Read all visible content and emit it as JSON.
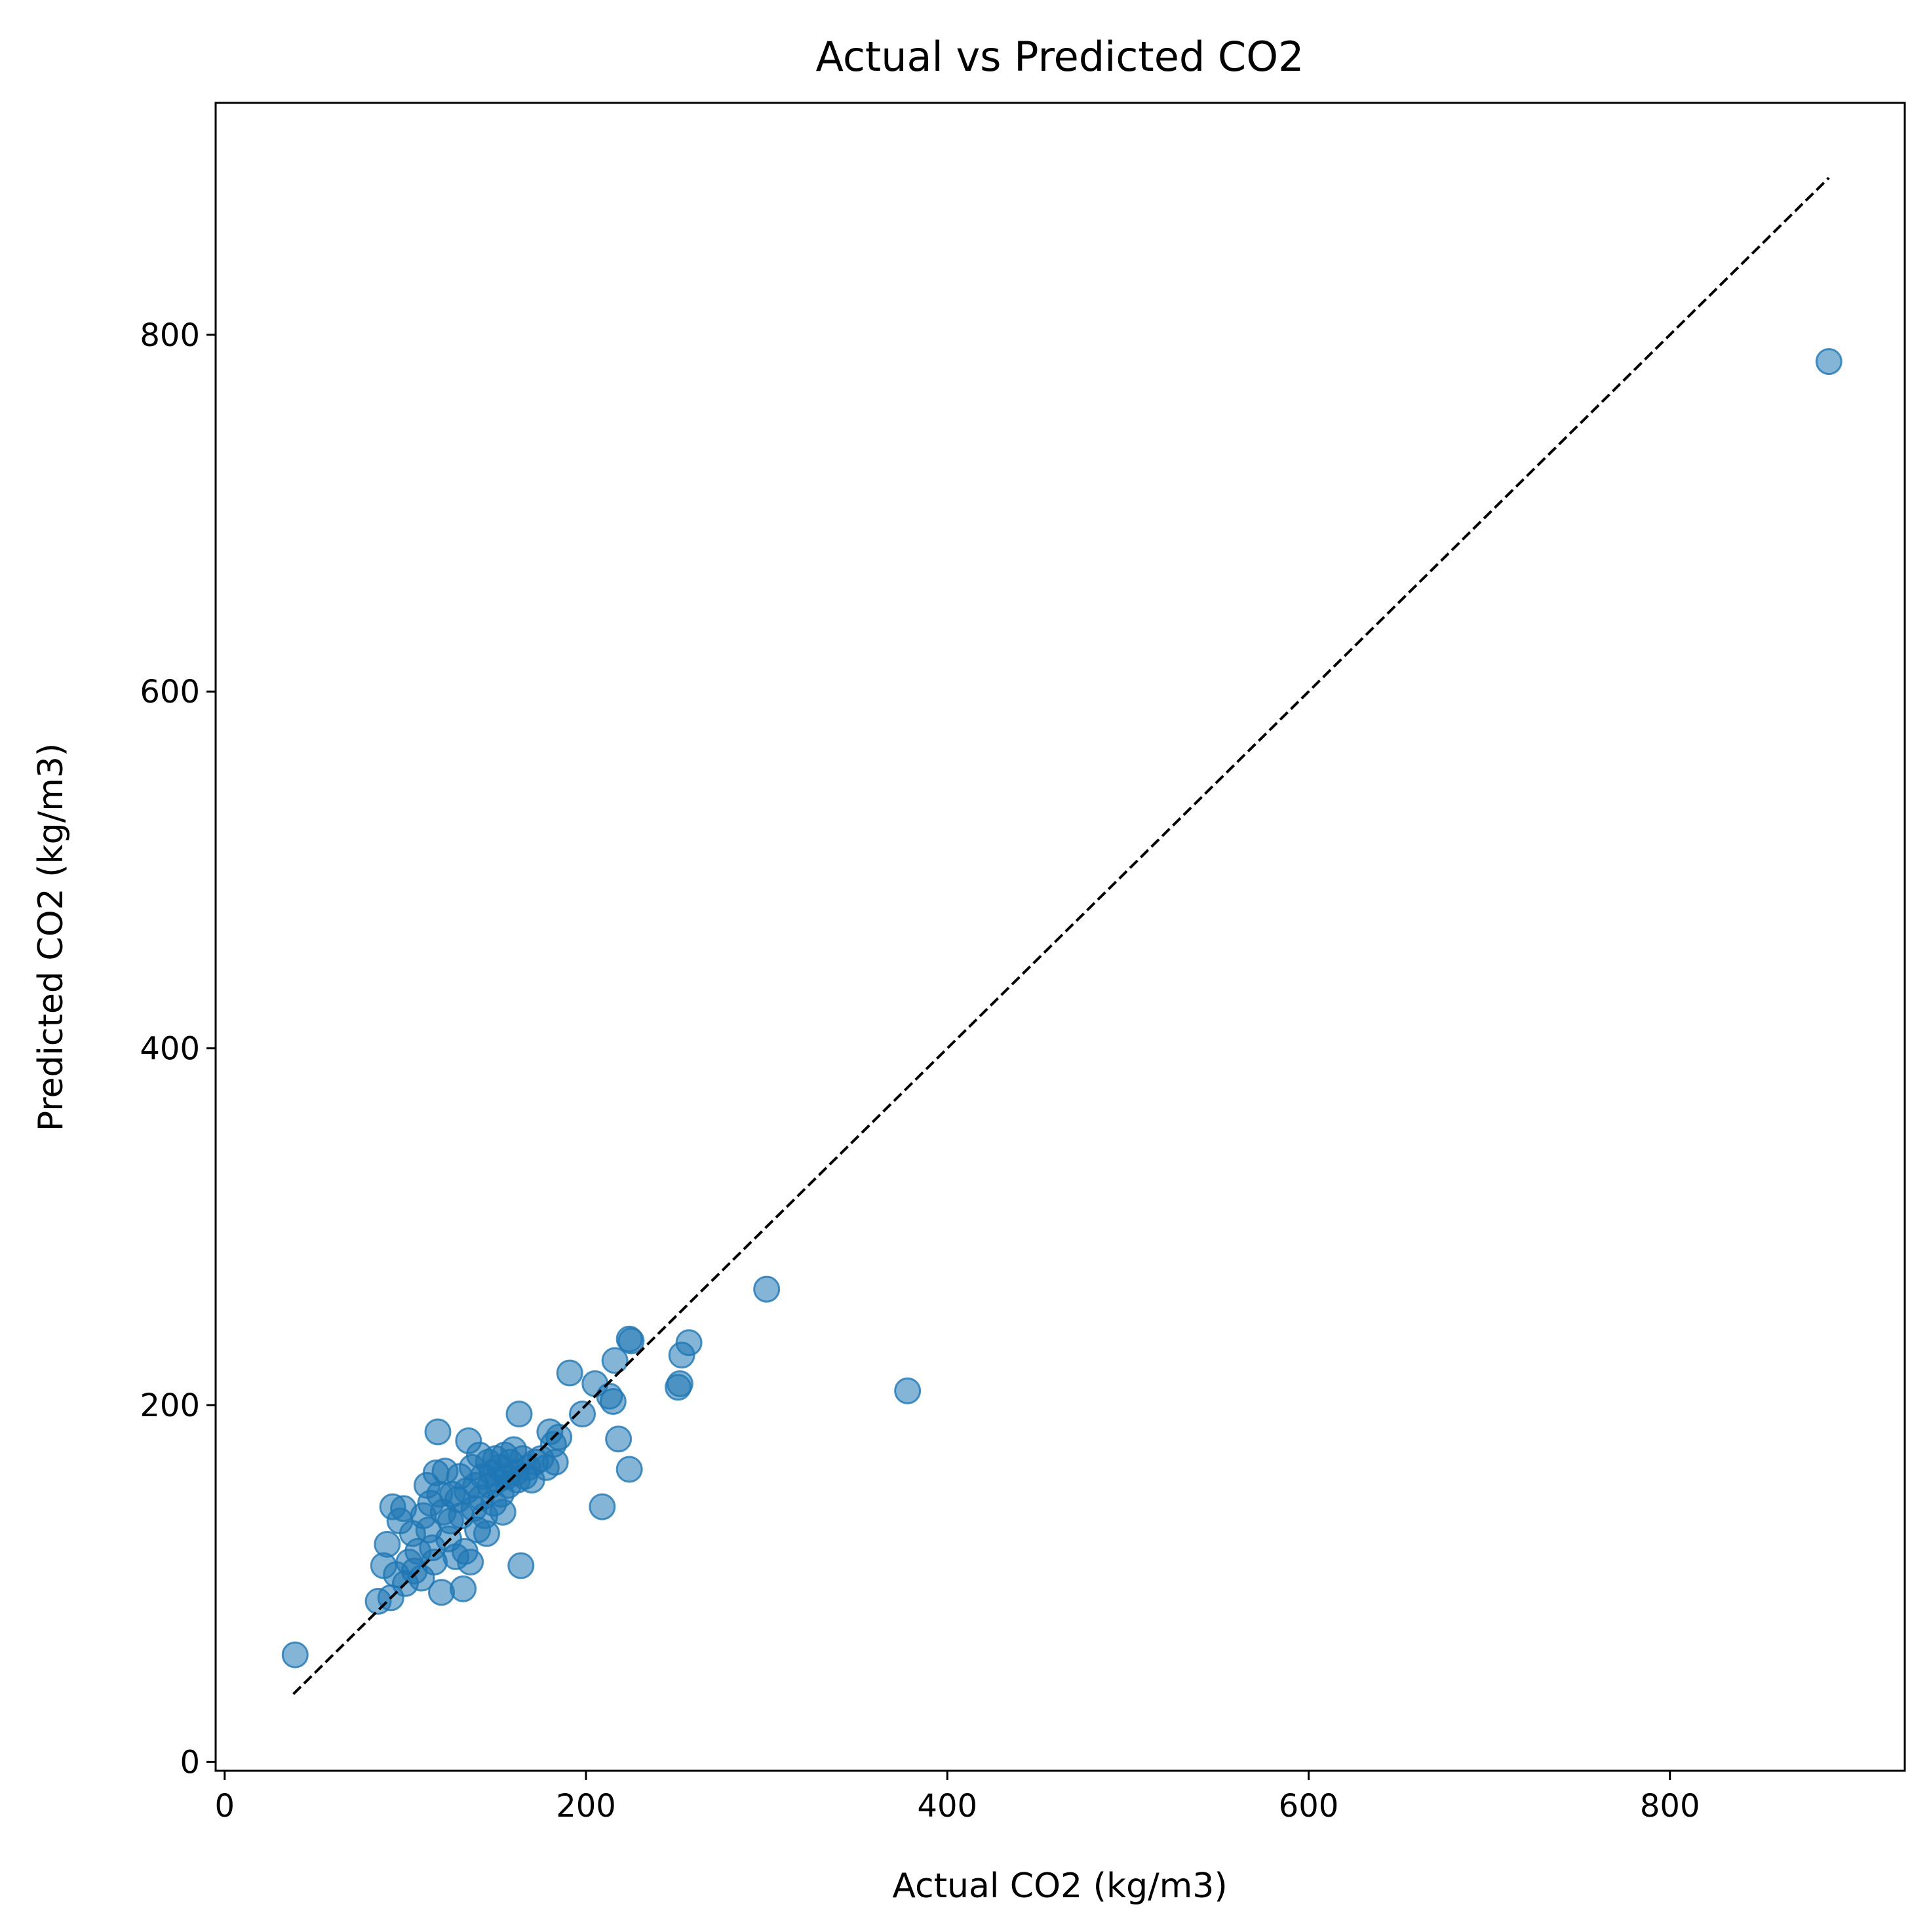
{
  "chart_data": {
    "type": "scatter",
    "title": "Actual vs Predicted CO2",
    "xlabel": "Actual CO2 (kg/m3)",
    "ylabel": "Predicted CO2 (kg/m3)",
    "xlim": [
      -5,
      930
    ],
    "ylim": [
      -5,
      930
    ],
    "xticks": [
      0,
      200,
      400,
      600,
      800
    ],
    "yticks": [
      0,
      200,
      400,
      600,
      800
    ],
    "grid": false,
    "reference_line": {
      "x": [
        38,
        888
      ],
      "y": [
        38,
        888
      ],
      "style": "dashed",
      "color": "#000000"
    },
    "series": [
      {
        "color": "#1f77b4",
        "alpha": 0.55,
        "points": [
          [
            39,
            60
          ],
          [
            85,
            90
          ],
          [
            88,
            110
          ],
          [
            90,
            122
          ],
          [
            92,
            92
          ],
          [
            93,
            143
          ],
          [
            95,
            105
          ],
          [
            97,
            135
          ],
          [
            99,
            142
          ],
          [
            100,
            100
          ],
          [
            102,
            112
          ],
          [
            104,
            128
          ],
          [
            105,
            107
          ],
          [
            107,
            118
          ],
          [
            109,
            103
          ],
          [
            110,
            138
          ],
          [
            112,
            155
          ],
          [
            113,
            130
          ],
          [
            114,
            145
          ],
          [
            115,
            120
          ],
          [
            116,
            112
          ],
          [
            117,
            162
          ],
          [
            118,
            185
          ],
          [
            119,
            150
          ],
          [
            120,
            95
          ],
          [
            121,
            140
          ],
          [
            122,
            163
          ],
          [
            124,
            125
          ],
          [
            125,
            135
          ],
          [
            126,
            150
          ],
          [
            128,
            115
          ],
          [
            129,
            147
          ],
          [
            130,
            160
          ],
          [
            131,
            138
          ],
          [
            132,
            97
          ],
          [
            133,
            118
          ],
          [
            134,
            152
          ],
          [
            135,
            180
          ],
          [
            136,
            112
          ],
          [
            137,
            165
          ],
          [
            138,
            142
          ],
          [
            139,
            155
          ],
          [
            140,
            130
          ],
          [
            141,
            172
          ],
          [
            142,
            148
          ],
          [
            143,
            160
          ],
          [
            144,
            138
          ],
          [
            145,
            128
          ],
          [
            146,
            168
          ],
          [
            147,
            155
          ],
          [
            148,
            162
          ],
          [
            149,
            145
          ],
          [
            150,
            170
          ],
          [
            151,
            158
          ],
          [
            152,
            165
          ],
          [
            153,
            150
          ],
          [
            154,
            140
          ],
          [
            155,
            172
          ],
          [
            156,
            160
          ],
          [
            157,
            155
          ],
          [
            158,
            168
          ],
          [
            160,
            175
          ],
          [
            161,
            162
          ],
          [
            162,
            158
          ],
          [
            163,
            195
          ],
          [
            164,
            110
          ],
          [
            165,
            170
          ],
          [
            166,
            160
          ],
          [
            168,
            165
          ],
          [
            170,
            158
          ],
          [
            172,
            168
          ],
          [
            175,
            170
          ],
          [
            178,
            165
          ],
          [
            180,
            185
          ],
          [
            182,
            178
          ],
          [
            183,
            168
          ],
          [
            185,
            182
          ],
          [
            191,
            218
          ],
          [
            198,
            195
          ],
          [
            205,
            212
          ],
          [
            209,
            143
          ],
          [
            213,
            205
          ],
          [
            215,
            202
          ],
          [
            216,
            225
          ],
          [
            218,
            181
          ],
          [
            224,
            237
          ],
          [
            224,
            164
          ],
          [
            225,
            236
          ],
          [
            251,
            210
          ],
          [
            252,
            212
          ],
          [
            253,
            228
          ],
          [
            257,
            235
          ],
          [
            300,
            265
          ],
          [
            378,
            208
          ],
          [
            888,
            785
          ]
        ]
      }
    ]
  }
}
